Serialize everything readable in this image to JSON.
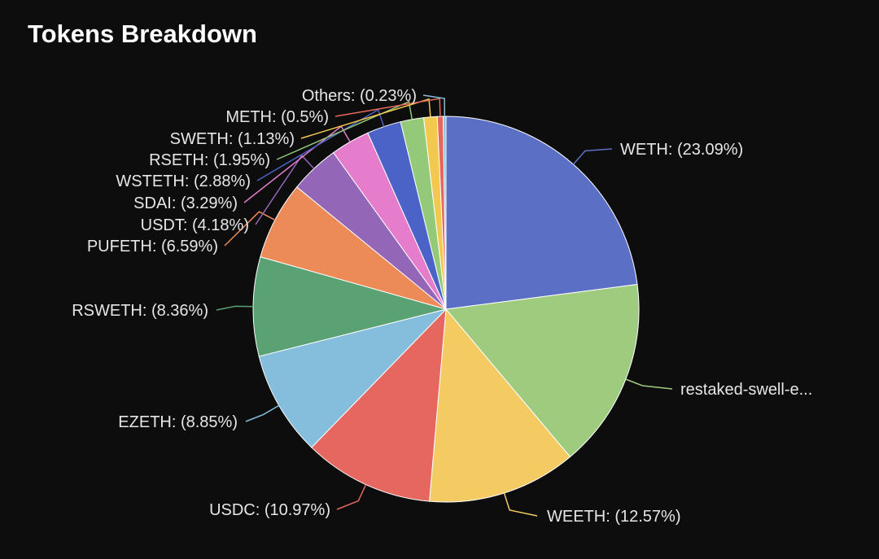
{
  "title": "Tokens Breakdown",
  "chart_data": {
    "type": "pie",
    "title": "Tokens Breakdown",
    "slices": [
      {
        "label": "WETH: (23.09%)",
        "value": 23.09,
        "color": "#5b70c4"
      },
      {
        "label": "restaked-swell-e...",
        "value": 16.03,
        "color": "#9fcb7f"
      },
      {
        "label": "WEETH: (12.57%)",
        "value": 12.57,
        "color": "#f3cb62"
      },
      {
        "label": "USDC: (10.97%)",
        "value": 10.97,
        "color": "#e5675f"
      },
      {
        "label": "EZETH: (8.85%)",
        "value": 8.85,
        "color": "#85bedd"
      },
      {
        "label": "RSWETH: (8.36%)",
        "value": 8.36,
        "color": "#5aa273"
      },
      {
        "label": "PUFETH: (6.59%)",
        "value": 6.59,
        "color": "#ec8a58"
      },
      {
        "label": "USDT: (4.18%)",
        "value": 4.18,
        "color": "#9366b8"
      },
      {
        "label": "SDAI: (3.29%)",
        "value": 3.29,
        "color": "#e57ccc"
      },
      {
        "label": "WSTETH: (2.88%)",
        "value": 2.88,
        "color": "#4b63c6"
      },
      {
        "label": "RSETH: (1.95%)",
        "value": 1.95,
        "color": "#94c97a"
      },
      {
        "label": "SWETH: (1.13%)",
        "value": 1.13,
        "color": "#f3c84e"
      },
      {
        "label": "METH: (0.5%)",
        "value": 0.5,
        "color": "#e5675f"
      },
      {
        "label": "Others: (0.23%)",
        "value": 0.23,
        "color": "#85bedd"
      }
    ]
  }
}
